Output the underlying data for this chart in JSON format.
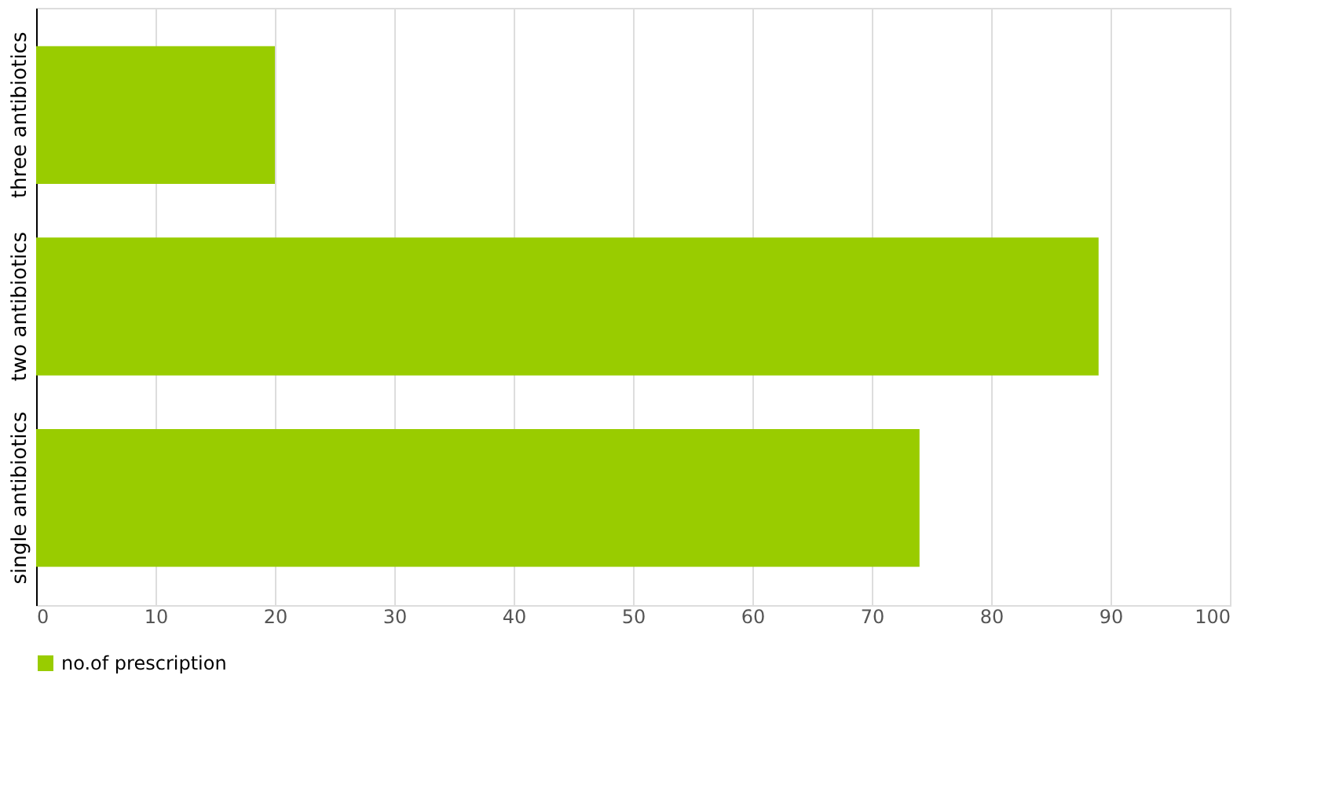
{
  "chart_data": {
    "type": "bar",
    "orientation": "horizontal",
    "categories": [
      "three antibiotics",
      "two antibiotics",
      "single antibiotics"
    ],
    "series": [
      {
        "name": "no.of prescription",
        "color": "#99cc00",
        "values": [
          20,
          89,
          74
        ]
      }
    ],
    "xlim": [
      0,
      100
    ],
    "xticks": [
      0,
      10,
      20,
      30,
      40,
      50,
      60,
      70,
      80,
      90,
      100
    ],
    "grid": "x",
    "legend": "bottom"
  }
}
